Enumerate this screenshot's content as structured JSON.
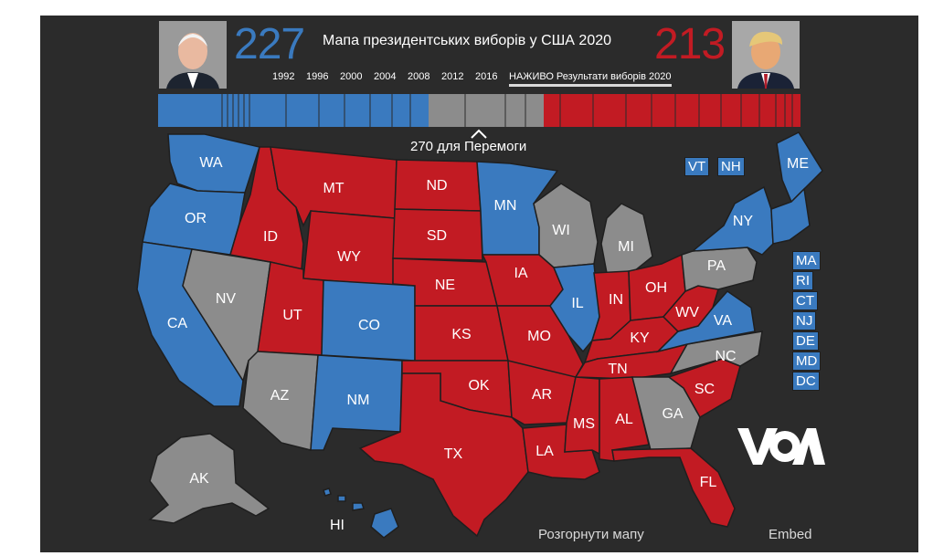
{
  "header": {
    "title": "Мапа президентських виборів у США 2020",
    "dem_votes": "227",
    "rep_votes": "213",
    "years": [
      "1992",
      "1996",
      "2000",
      "2004",
      "2008",
      "2012",
      "2016"
    ],
    "live_label": "НАЖИВО Результати виборів 2020",
    "win_label": "270 для Перемоги"
  },
  "colors": {
    "dem": "#3a7abf",
    "rep": "#c21b23",
    "undecided": "#8c8c8c",
    "background": "#2b2b2b"
  },
  "states": {
    "WA": "dem",
    "OR": "dem",
    "CA": "dem",
    "NV": "undecided",
    "ID": "rep",
    "MT": "rep",
    "WY": "rep",
    "UT": "rep",
    "CO": "dem",
    "AZ": "undecided",
    "NM": "dem",
    "ND": "rep",
    "SD": "rep",
    "NE": "rep",
    "KS": "rep",
    "OK": "rep",
    "TX": "rep",
    "MN": "dem",
    "IA": "rep",
    "MO": "rep",
    "AR": "rep",
    "LA": "rep",
    "WI": "undecided",
    "IL": "dem",
    "MI": "undecided",
    "IN": "rep",
    "OH": "rep",
    "KY": "rep",
    "TN": "rep",
    "MS": "rep",
    "AL": "rep",
    "GA": "undecided",
    "FL": "rep",
    "SC": "rep",
    "NC": "undecided",
    "VA": "dem",
    "WV": "rep",
    "PA": "undecided",
    "NY": "dem",
    "ME": "dem",
    "AK": "undecided",
    "HI": "dem"
  },
  "small_states": [
    "VT",
    "NH",
    "MA",
    "RI",
    "CT",
    "NJ",
    "DE",
    "MD",
    "DC"
  ],
  "footer": {
    "expand_label": "Розгорнути мапу",
    "embed_label": "Embed"
  },
  "logo": {
    "text": "VOA",
    "icon": "voa-logo"
  }
}
